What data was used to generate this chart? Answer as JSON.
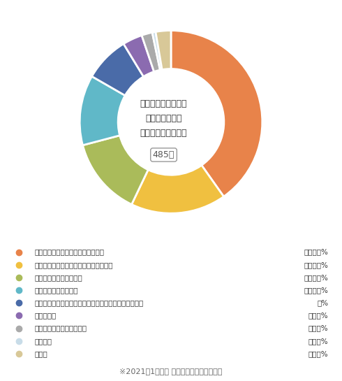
{
  "title_line1": "感染拡大下での保育",
  "title_line2": "特に「負担」に",
  "title_line3": "感じていることは？",
  "center_label": "485名",
  "labels": [
    "感染の可能性を気にしながらの保育",
    "予定していた行事内容の変更に伴う対応",
    "消毒など、衛生面の管理",
    "プライベートでの制限",
    "玄関での受け入れなど、感染防止対策に伴う作業の増加",
    "保護者対応",
    "子どものこまめな体調管理",
    "特になし",
    "その他"
  ],
  "values": [
    40.2,
    16.9,
    13.8,
    12.4,
    8.0,
    3.5,
    1.9,
    0.6,
    2.7
  ],
  "colors": [
    "#E8834A",
    "#F0C040",
    "#AABB5A",
    "#60B8C8",
    "#4A6BA8",
    "#8B6BB0",
    "#AAAAAA",
    "#C8DCE8",
    "#D8C898"
  ],
  "percentages": [
    "４０．２%",
    "１６．９%",
    "１３．８%",
    "１２．４%",
    "８%",
    "３．５%",
    "１．９%",
    "０．６%",
    "２．７%"
  ],
  "footer": "※2021年1月実施 ほいくるアンケートより",
  "bg_color": "#FFFFFF",
  "text_color": "#333333",
  "footer_color": "#666666"
}
